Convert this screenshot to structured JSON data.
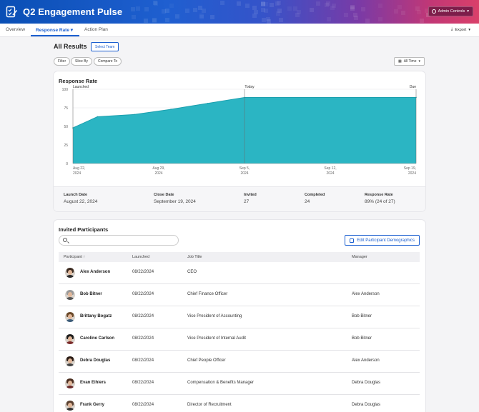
{
  "app": {
    "title": "Q2 Engagement Pulse",
    "admin_label": "Admin Controls"
  },
  "tabs": [
    {
      "label": "Overview"
    },
    {
      "label": "Response Rate"
    },
    {
      "label": "Action Plan"
    }
  ],
  "export_label": "Export",
  "page": {
    "title": "All Results",
    "select_team": "Select Team",
    "filters": [
      "Filter",
      "Slice By",
      "Compare To"
    ],
    "time_range": "All Time"
  },
  "response_card": {
    "title": "Response Rate",
    "markers": {
      "launched": "Launched",
      "today": "Today",
      "due": "Due"
    },
    "stats": [
      {
        "label": "Launch Date",
        "value": "August 22, 2024"
      },
      {
        "label": "Close Date",
        "value": "September 19, 2024"
      },
      {
        "label": "Invited",
        "value": "27"
      },
      {
        "label": "Completed",
        "value": "24"
      },
      {
        "label": "Response Rate",
        "value": "89% (24 of 27)"
      }
    ]
  },
  "chart_data": {
    "type": "area",
    "title": "Response Rate",
    "ylim": [
      0,
      100
    ],
    "y_ticks": [
      0,
      25,
      50,
      75,
      100
    ],
    "x_ticks": [
      {
        "line1": "Aug 22,",
        "line2": "2024",
        "day": 0
      },
      {
        "line1": "Aug 29,",
        "line2": "2024",
        "day": 7
      },
      {
        "line1": "Sep 5,",
        "line2": "2024",
        "day": 14
      },
      {
        "line1": "Sep 12,",
        "line2": "2024",
        "day": 21
      },
      {
        "line1": "Sep 19,",
        "line2": "2024",
        "day": 28
      }
    ],
    "x": [
      0,
      2,
      5,
      8,
      11,
      14,
      28
    ],
    "values": [
      48,
      63,
      66,
      73,
      81,
      89,
      89
    ],
    "today_day": 14,
    "fill_color": "#2bb5c3",
    "line_color": "#1b9fae"
  },
  "participants": {
    "title": "Invited Participants",
    "search_placeholder": "",
    "edit_button": "Edit Participant Demographics",
    "columns": {
      "participant": "Participant",
      "launched": "Launched",
      "job_title": "Job Title",
      "manager": "Manager"
    },
    "rows": [
      {
        "name": "Alex Anderson",
        "launched": "08/22/2024",
        "job": "CEO",
        "manager": ""
      },
      {
        "name": "Bob Bitner",
        "launched": "08/22/2024",
        "job": "Chief Finance Officer",
        "manager": "Alex Anderson"
      },
      {
        "name": "Brittany Bogatz",
        "launched": "08/22/2024",
        "job": "Vice President of Accounting",
        "manager": "Bob Bitner"
      },
      {
        "name": "Caroline Carlson",
        "launched": "08/22/2024",
        "job": "Vice President of Internal Audit",
        "manager": "Bob Bitner"
      },
      {
        "name": "Debra Douglas",
        "launched": "08/22/2024",
        "job": "Chief People Officer",
        "manager": "Alex Anderson"
      },
      {
        "name": "Evan Eihiers",
        "launched": "08/22/2024",
        "job": "Compensation & Benefits Manager",
        "manager": "Debra Douglas"
      },
      {
        "name": "Frank Gerry",
        "launched": "08/22/2024",
        "job": "Director of Recruitment",
        "manager": "Debra Douglas"
      }
    ]
  }
}
